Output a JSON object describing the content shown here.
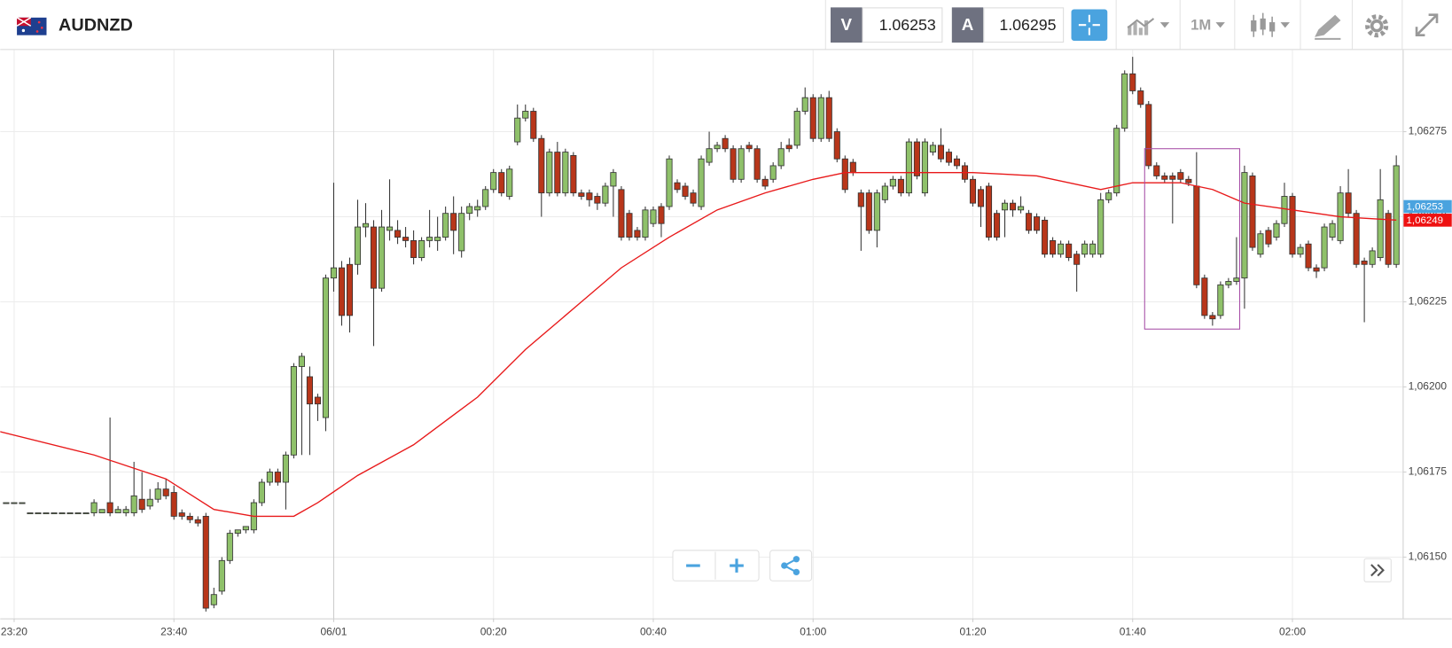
{
  "header": {
    "symbol": "AUDNZD",
    "bid_label": "V",
    "bid": "1.06253",
    "ask_label": "A",
    "ask": "1.06295",
    "timeframe": "1M"
  },
  "chart_data": {
    "type": "candlestick",
    "up_color": "#8fc16a",
    "down_color": "#b8361a",
    "xlim": [
      -1.74,
      173.8
    ],
    "xticks": [
      {
        "value": 0,
        "label": "23:20"
      },
      {
        "value": 20,
        "label": "23:40"
      },
      {
        "value": 40,
        "label": "06/01"
      },
      {
        "value": 60,
        "label": "00:20"
      },
      {
        "value": 80,
        "label": "00:40"
      },
      {
        "value": 100,
        "label": "01:00"
      },
      {
        "value": 120,
        "label": "01:20"
      },
      {
        "value": 140,
        "label": "01:40"
      },
      {
        "value": 160,
        "label": "02:00"
      }
    ],
    "ylim": [
      1.06132,
      1.06299
    ],
    "yticks": [
      {
        "value": 1.0615,
        "label": "1,06150"
      },
      {
        "value": 1.06175,
        "label": "1,06175"
      },
      {
        "value": 1.062,
        "label": "1,06200"
      },
      {
        "value": 1.06225,
        "label": "1,06225"
      },
      {
        "value": 1.0625,
        "label": "1,06250"
      },
      {
        "value": 1.06275,
        "label": "1,06275"
      }
    ],
    "grid": true,
    "x": [
      -1,
      0,
      1,
      2,
      3,
      4,
      5,
      6,
      7,
      8,
      9,
      10,
      11,
      12,
      13,
      14,
      15,
      16,
      17,
      18,
      19,
      20,
      21,
      22,
      23,
      24,
      25,
      26,
      27,
      28,
      29,
      30,
      31,
      32,
      33,
      34,
      35,
      36,
      37,
      38,
      39,
      40,
      41,
      42,
      43,
      44,
      45,
      46,
      47,
      48,
      49,
      50,
      51,
      52,
      53,
      54,
      55,
      56,
      57,
      58,
      59,
      60,
      61,
      62,
      63,
      64,
      65,
      66,
      67,
      68,
      69,
      70,
      71,
      72,
      73,
      74,
      75,
      76,
      77,
      78,
      79,
      80,
      81,
      82,
      83,
      84,
      85,
      86,
      87,
      88,
      89,
      90,
      91,
      92,
      93,
      94,
      95,
      96,
      97,
      98,
      99,
      100,
      101,
      102,
      103,
      104,
      105,
      106,
      107,
      108,
      109,
      110,
      111,
      112,
      113,
      114,
      115,
      116,
      117,
      118,
      119,
      120,
      121,
      122,
      123,
      124,
      125,
      126,
      127,
      128,
      129,
      130,
      131,
      132,
      133,
      134,
      135,
      136,
      137,
      138,
      139,
      140,
      141,
      142,
      143,
      144,
      145,
      146,
      147,
      148,
      149,
      150,
      151,
      152,
      153,
      154,
      155,
      156,
      157,
      158,
      159,
      160,
      161,
      162,
      163,
      164,
      165,
      166,
      167,
      168,
      169,
      170,
      171,
      172,
      173
    ],
    "open": [
      1.06166,
      1.06166,
      1.06166,
      1.06163,
      1.06163,
      1.06163,
      1.06163,
      1.06163,
      1.06163,
      1.06163,
      1.06163,
      1.06163,
      1.06163,
      1.06166,
      1.06163,
      1.06163,
      1.06163,
      1.06167,
      1.06165,
      1.06167,
      1.0617,
      1.06169,
      1.06163,
      1.06162,
      1.06161,
      1.06162,
      1.06136,
      1.0614,
      1.06149,
      1.06157,
      1.06158,
      1.06158,
      1.06166,
      1.06172,
      1.06175,
      1.06172,
      1.0618,
      1.06206,
      1.06203,
      1.06197,
      1.06191,
      1.06232,
      1.06235,
      1.06236,
      1.06236,
      1.06247,
      1.06247,
      1.06229,
      1.06246,
      1.06246,
      1.06244,
      1.06243,
      1.06238,
      1.06243,
      1.06243,
      1.06244,
      1.06251,
      1.0624,
      1.06251,
      1.06252,
      1.06253,
      1.06258,
      1.06263,
      1.06256,
      1.06272,
      1.06279,
      1.06281,
      1.06273,
      1.06257,
      1.06269,
      1.06257,
      1.06268,
      1.06257,
      1.06257,
      1.06256,
      1.06254,
      1.06259,
      1.06258,
      1.06251,
      1.06246,
      1.06244,
      1.06248,
      1.06253,
      1.06253,
      1.0626,
      1.06259,
      1.06257,
      1.06253,
      1.06266,
      1.0627,
      1.06273,
      1.0627,
      1.06261,
      1.06271,
      1.0627,
      1.06261,
      1.06261,
      1.06265,
      1.06271,
      1.06271,
      1.06281,
      1.06285,
      1.06273,
      1.06285,
      1.06275,
      1.06267,
      1.06266,
      1.06257,
      1.06257,
      1.06246,
      1.06255,
      1.06259,
      1.06261,
      1.06257,
      1.06272,
      1.06257,
      1.06269,
      1.06271,
      1.06269,
      1.06267,
      1.06265,
      1.06261,
      1.06258,
      1.06259,
      1.06251,
      1.06252,
      1.06254,
      1.06252,
      1.06251,
      1.0625,
      1.06249,
      1.06243,
      1.06239,
      1.06242,
      1.06239,
      1.06239,
      1.06239,
      1.06239,
      1.06255,
      1.06257,
      1.06276,
      1.06292,
      1.06287,
      1.06283,
      1.06265,
      1.06262,
      1.06262,
      1.06263,
      1.06261,
      1.06259,
      1.06232,
      1.06221,
      1.06221,
      1.0623,
      1.06231,
      1.06232,
      1.06262,
      1.06239,
      1.06246,
      1.06244,
      1.06248,
      1.06256,
      1.06239,
      1.06242,
      1.06235,
      1.06235,
      1.06244,
      1.06243,
      1.06257,
      1.06251,
      1.06237,
      1.06236,
      1.06238,
      1.06251,
      1.06236
    ],
    "high": [
      1.06166,
      1.06166,
      1.06166,
      1.06163,
      1.06163,
      1.06163,
      1.06163,
      1.06163,
      1.06163,
      1.06163,
      1.06163,
      1.06167,
      1.06164,
      1.06191,
      1.06165,
      1.06165,
      1.06178,
      1.06175,
      1.0617,
      1.06172,
      1.06173,
      1.06171,
      1.06164,
      1.06163,
      1.06162,
      1.06163,
      1.06141,
      1.0615,
      1.06158,
      1.06158,
      1.06159,
      1.06167,
      1.06173,
      1.06176,
      1.06176,
      1.06181,
      1.06207,
      1.0621,
      1.06206,
      1.06198,
      1.06233,
      1.0626,
      1.06237,
      1.06238,
      1.06255,
      1.06254,
      1.06249,
      1.06252,
      1.06261,
      1.06249,
      1.06247,
      1.06246,
      1.06244,
      1.06252,
      1.0625,
      1.06253,
      1.06256,
      1.06253,
      1.06254,
      1.06255,
      1.06259,
      1.06264,
      1.06264,
      1.06265,
      1.06283,
      1.06283,
      1.06282,
      1.06274,
      1.0627,
      1.06272,
      1.0627,
      1.06269,
      1.06258,
      1.06258,
      1.06257,
      1.0626,
      1.06264,
      1.06259,
      1.06252,
      1.06247,
      1.06253,
      1.06253,
      1.06254,
      1.06268,
      1.06261,
      1.0626,
      1.06258,
      1.06268,
      1.06275,
      1.06272,
      1.06274,
      1.06271,
      1.06271,
      1.06272,
      1.06271,
      1.06262,
      1.06266,
      1.06272,
      1.06273,
      1.06282,
      1.06288,
      1.06286,
      1.06286,
      1.06287,
      1.06276,
      1.06268,
      1.06267,
      1.06258,
      1.06258,
      1.06258,
      1.0626,
      1.06262,
      1.06262,
      1.06273,
      1.06273,
      1.06273,
      1.06272,
      1.06276,
      1.0627,
      1.06268,
      1.06266,
      1.06262,
      1.06259,
      1.0626,
      1.06252,
      1.06255,
      1.06255,
      1.06256,
      1.06252,
      1.06251,
      1.0625,
      1.06244,
      1.06243,
      1.06243,
      1.0624,
      1.06243,
      1.06243,
      1.06257,
      1.06258,
      1.06277,
      1.06293,
      1.06297,
      1.06288,
      1.06284,
      1.06266,
      1.06263,
      1.06263,
      1.06264,
      1.06262,
      1.06269,
      1.06233,
      1.06222,
      1.06231,
      1.06232,
      1.06244,
      1.06265,
      1.06263,
      1.06246,
      1.06247,
      1.06249,
      1.0626,
      1.06257,
      1.06242,
      1.06243,
      1.06236,
      1.06248,
      1.06249,
      1.06259,
      1.06264,
      1.06252,
      1.06238,
      1.06241,
      1.06264,
      1.06252,
      1.06268
    ],
    "low": [
      1.06166,
      1.06166,
      1.06166,
      1.06163,
      1.06163,
      1.06163,
      1.06163,
      1.06163,
      1.06163,
      1.06163,
      1.06163,
      1.06162,
      1.06163,
      1.06162,
      1.06163,
      1.06162,
      1.06162,
      1.06163,
      1.06164,
      1.06166,
      1.06167,
      1.06161,
      1.06161,
      1.0616,
      1.06159,
      1.06134,
      1.06135,
      1.06139,
      1.06148,
      1.06156,
      1.06157,
      1.06157,
      1.06165,
      1.06171,
      1.06171,
      1.06164,
      1.06179,
      1.0618,
      1.0618,
      1.0619,
      1.06187,
      1.06228,
      1.06218,
      1.06216,
      1.06233,
      1.06244,
      1.06212,
      1.06228,
      1.06243,
      1.06242,
      1.06241,
      1.06236,
      1.06237,
      1.06241,
      1.0624,
      1.06243,
      1.06239,
      1.06238,
      1.06249,
      1.0625,
      1.06252,
      1.06257,
      1.06256,
      1.06255,
      1.06271,
      1.06278,
      1.06272,
      1.0625,
      1.06256,
      1.06256,
      1.06256,
      1.06256,
      1.06255,
      1.06253,
      1.06252,
      1.06253,
      1.0625,
      1.06243,
      1.06243,
      1.06243,
      1.06243,
      1.06247,
      1.06244,
      1.06252,
      1.06257,
      1.06255,
      1.06253,
      1.06252,
      1.06265,
      1.06269,
      1.06269,
      1.0626,
      1.0626,
      1.06269,
      1.0626,
      1.06258,
      1.0626,
      1.06264,
      1.06269,
      1.0627,
      1.0628,
      1.06272,
      1.06272,
      1.06272,
      1.06266,
      1.06257,
      1.06262,
      1.0624,
      1.06245,
      1.06241,
      1.06254,
      1.06258,
      1.06256,
      1.06256,
      1.06261,
      1.06256,
      1.06268,
      1.06266,
      1.06265,
      1.06264,
      1.0626,
      1.06253,
      1.06247,
      1.06243,
      1.06243,
      1.06244,
      1.0625,
      1.06251,
      1.06245,
      1.06245,
      1.06238,
      1.06238,
      1.06238,
      1.06237,
      1.06228,
      1.06238,
      1.06238,
      1.06238,
      1.06254,
      1.06256,
      1.06275,
      1.06286,
      1.06282,
      1.06264,
      1.06261,
      1.0626,
      1.06248,
      1.0626,
      1.06259,
      1.06229,
      1.0622,
      1.06218,
      1.0622,
      1.06229,
      1.0623,
      1.06223,
      1.0624,
      1.06238,
      1.06241,
      1.06243,
      1.06247,
      1.06238,
      1.06238,
      1.06234,
      1.06232,
      1.06234,
      1.06243,
      1.06242,
      1.0625,
      1.06235,
      1.06219,
      1.06235,
      1.06237,
      1.06235,
      1.06235
    ],
    "close": [
      1.06166,
      1.06166,
      1.06166,
      1.06163,
      1.06163,
      1.06163,
      1.06163,
      1.06163,
      1.06163,
      1.06163,
      1.06163,
      1.06166,
      1.06164,
      1.06163,
      1.06164,
      1.06164,
      1.06168,
      1.06164,
      1.06167,
      1.0617,
      1.06168,
      1.06162,
      1.06162,
      1.06161,
      1.0616,
      1.06135,
      1.06139,
      1.06149,
      1.06157,
      1.06158,
      1.06159,
      1.06166,
      1.06172,
      1.06175,
      1.06172,
      1.0618,
      1.06206,
      1.06209,
      1.06195,
      1.06195,
      1.06232,
      1.06235,
      1.06221,
      1.06221,
      1.06247,
      1.06248,
      1.06229,
      1.06247,
      1.06247,
      1.06244,
      1.06243,
      1.06238,
      1.06243,
      1.06244,
      1.06244,
      1.06251,
      1.06246,
      1.06251,
      1.06253,
      1.06253,
      1.06258,
      1.06263,
      1.06257,
      1.06264,
      1.06279,
      1.06281,
      1.06273,
      1.06257,
      1.06269,
      1.06257,
      1.06269,
      1.06257,
      1.06256,
      1.06255,
      1.06254,
      1.06259,
      1.06263,
      1.06244,
      1.06244,
      1.06244,
      1.06252,
      1.06252,
      1.06248,
      1.06267,
      1.06258,
      1.06256,
      1.06254,
      1.06267,
      1.0627,
      1.06271,
      1.0627,
      1.06261,
      1.0627,
      1.0627,
      1.06261,
      1.06259,
      1.06265,
      1.0627,
      1.0627,
      1.06281,
      1.06285,
      1.06273,
      1.06285,
      1.06273,
      1.06267,
      1.06258,
      1.06263,
      1.06253,
      1.06246,
      1.06257,
      1.06259,
      1.06261,
      1.06257,
      1.06272,
      1.06262,
      1.06272,
      1.06271,
      1.06267,
      1.06266,
      1.06265,
      1.06261,
      1.06254,
      1.06253,
      1.06244,
      1.06244,
      1.06254,
      1.06252,
      1.06253,
      1.06246,
      1.06246,
      1.06239,
      1.06239,
      1.06242,
      1.06238,
      1.06236,
      1.06242,
      1.06242,
      1.06255,
      1.06257,
      1.06276,
      1.06292,
      1.06287,
      1.06283,
      1.06265,
      1.06262,
      1.06261,
      1.06261,
      1.06261,
      1.0626,
      1.0623,
      1.06221,
      1.0622,
      1.0623,
      1.06231,
      1.06232,
      1.06263,
      1.06241,
      1.06245,
      1.06242,
      1.06248,
      1.06256,
      1.06239,
      1.06241,
      1.06235,
      1.06234,
      1.06247,
      1.06248,
      1.06257,
      1.06251,
      1.06236,
      1.06236,
      1.0624,
      1.06255,
      1.06236,
      1.06265
    ],
    "moving_average": {
      "color": "#e8191a",
      "x": [
        -2,
        10,
        19,
        25,
        30,
        35,
        38,
        43,
        50,
        58,
        64,
        71,
        76,
        82,
        88,
        94,
        100,
        104,
        112,
        120,
        128,
        136,
        140,
        146,
        150,
        154,
        160,
        166,
        173
      ],
      "values": [
        1.06187,
        1.0618,
        1.06173,
        1.06164,
        1.06162,
        1.06162,
        1.06166,
        1.06174,
        1.06183,
        1.06197,
        1.06211,
        1.06225,
        1.06235,
        1.06244,
        1.06252,
        1.06257,
        1.06261,
        1.06263,
        1.06263,
        1.06263,
        1.06262,
        1.06258,
        1.0626,
        1.0626,
        1.06258,
        1.06254,
        1.06252,
        1.0625,
        1.06249
      ]
    },
    "price_markers": [
      {
        "value": 1.06253,
        "label": "1,06253",
        "color": "#4aa3df"
      },
      {
        "value": 1.06249,
        "label": "1,06249",
        "color": "#ee1111"
      }
    ],
    "box": {
      "x": [
        141.5,
        153.4
      ],
      "y": [
        1.0627,
        1.06217
      ],
      "color": "#a64ca6"
    }
  }
}
